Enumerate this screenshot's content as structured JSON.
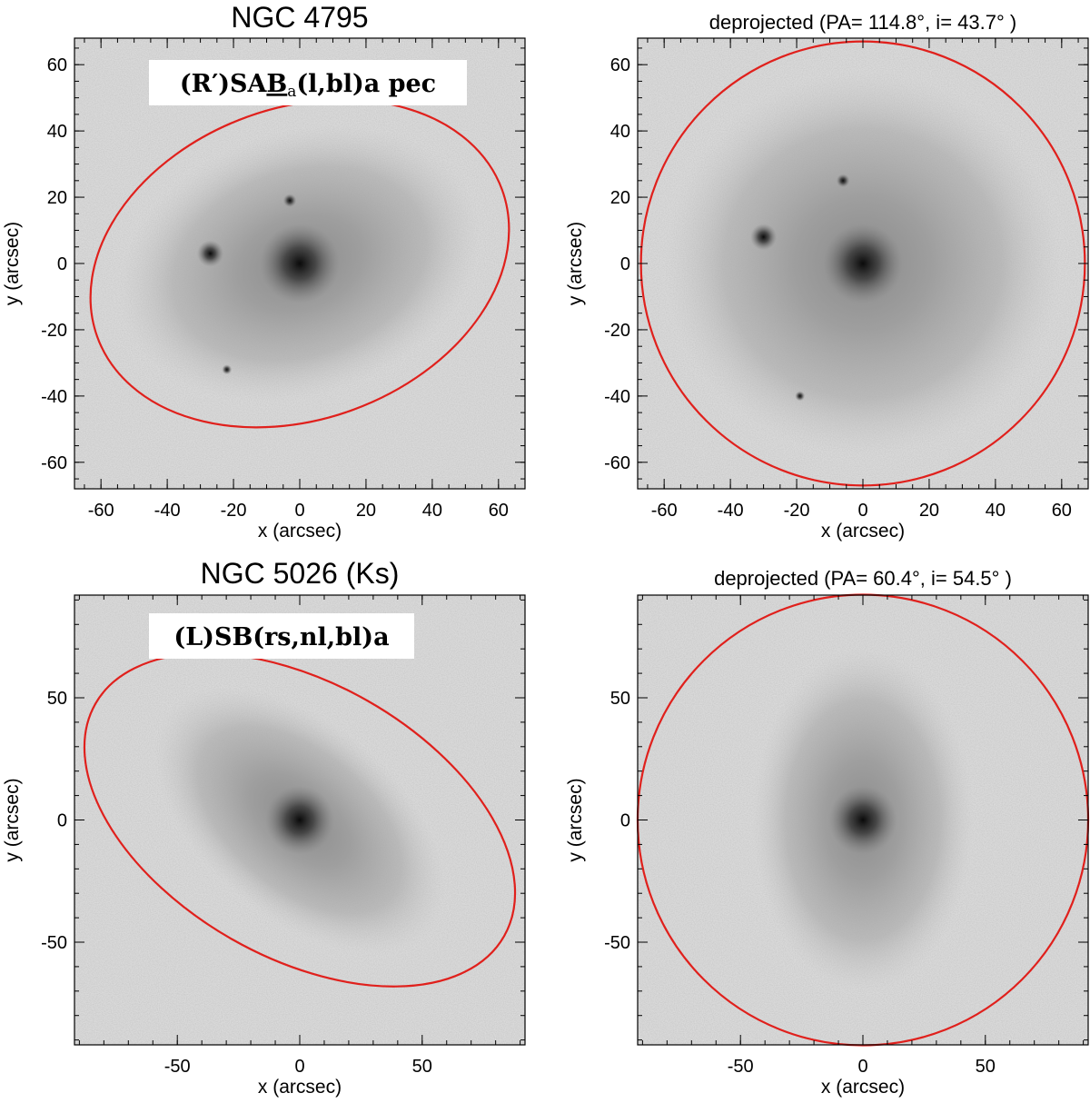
{
  "figure": {
    "panels": [
      {
        "id": "ngc4795-observed",
        "title": "NGC 4795",
        "classification": {
          "prefix": "(R′)SA",
          "bar": "B",
          "bar_sub": "a",
          "suffix": "(l,bl)a pec"
        },
        "xlabel": "x (arcsec)",
        "ylabel": "y (arcsec)",
        "xlim": [
          -68,
          68
        ],
        "ylim": [
          -68,
          68
        ],
        "xticks": [
          -60,
          -40,
          -20,
          0,
          20,
          40,
          60
        ],
        "yticks": [
          -60,
          -40,
          -20,
          0,
          20,
          40,
          60
        ],
        "ellipse": {
          "cx": 0,
          "cy": 0,
          "a": 65,
          "b": 47,
          "rot_deg": 20
        },
        "blobs": [
          {
            "x": 0,
            "y": 0,
            "s": 12
          },
          {
            "x": -27,
            "y": 3,
            "s": 4
          },
          {
            "x": -3,
            "y": 19,
            "s": 2
          },
          {
            "x": -22,
            "y": -32,
            "s": 1.5
          }
        ],
        "disk": {
          "a": 56,
          "b": 40,
          "rot_deg": 18
        }
      },
      {
        "id": "ngc4795-deprojected",
        "title": "deprojected  (PA= 114.8°, i= 43.7° )",
        "xlabel": "x (arcsec)",
        "ylabel": "y (arcsec)",
        "xlim": [
          -68,
          68
        ],
        "ylim": [
          -68,
          68
        ],
        "xticks": [
          -60,
          -40,
          -20,
          0,
          20,
          40,
          60
        ],
        "yticks": [
          -60,
          -40,
          -20,
          0,
          20,
          40,
          60
        ],
        "ellipse": {
          "cx": 0,
          "cy": 0,
          "a": 67,
          "b": 67,
          "rot_deg": 0
        },
        "blobs": [
          {
            "x": 0,
            "y": 0,
            "s": 12
          },
          {
            "x": -30,
            "y": 8,
            "s": 4
          },
          {
            "x": -6,
            "y": 25,
            "s": 2
          },
          {
            "x": -19,
            "y": -40,
            "s": 1.5
          }
        ],
        "disk": {
          "a": 60,
          "b": 58,
          "rot_deg": 0
        }
      },
      {
        "id": "ngc5026-observed",
        "title": "NGC 5026   (Ks)",
        "classification": {
          "prefix": "(L)SB(rs,nl,bl)a",
          "bar": "",
          "bar_sub": "",
          "suffix": ""
        },
        "xlabel": "x (arcsec)",
        "ylabel": "y (arcsec)",
        "xlim": [
          -92,
          92
        ],
        "ylim": [
          -92,
          92
        ],
        "xticks": [
          -50,
          0,
          50
        ],
        "yticks": [
          -50,
          0,
          50
        ],
        "ellipse": {
          "cx": 0,
          "cy": 0,
          "a": 96,
          "b": 56,
          "rot_deg": -29.6
        },
        "blobs": [
          {
            "x": 0,
            "y": 0,
            "s": 14
          }
        ],
        "disk": {
          "a": 70,
          "b": 40,
          "rot_deg": -40
        }
      },
      {
        "id": "ngc5026-deprojected",
        "title": "deprojected  (PA= 60.4°, i= 54.5° )",
        "xlabel": "x (arcsec)",
        "ylabel": "y (arcsec)",
        "xlim": [
          -92,
          92
        ],
        "ylim": [
          -92,
          92
        ],
        "xticks": [
          -50,
          0,
          50
        ],
        "yticks": [
          -50,
          0,
          50
        ],
        "ellipse": {
          "cx": 0,
          "cy": 0,
          "a": 92,
          "b": 92,
          "rot_deg": 0
        },
        "blobs": [
          {
            "x": 0,
            "y": 0,
            "s": 14
          }
        ],
        "disk": {
          "a": 45,
          "b": 70,
          "rot_deg": 0
        }
      }
    ]
  },
  "colors": {
    "ellipse": "#e0201c",
    "background_noise": "#bdbdbd",
    "label_box": "#ffffff"
  }
}
